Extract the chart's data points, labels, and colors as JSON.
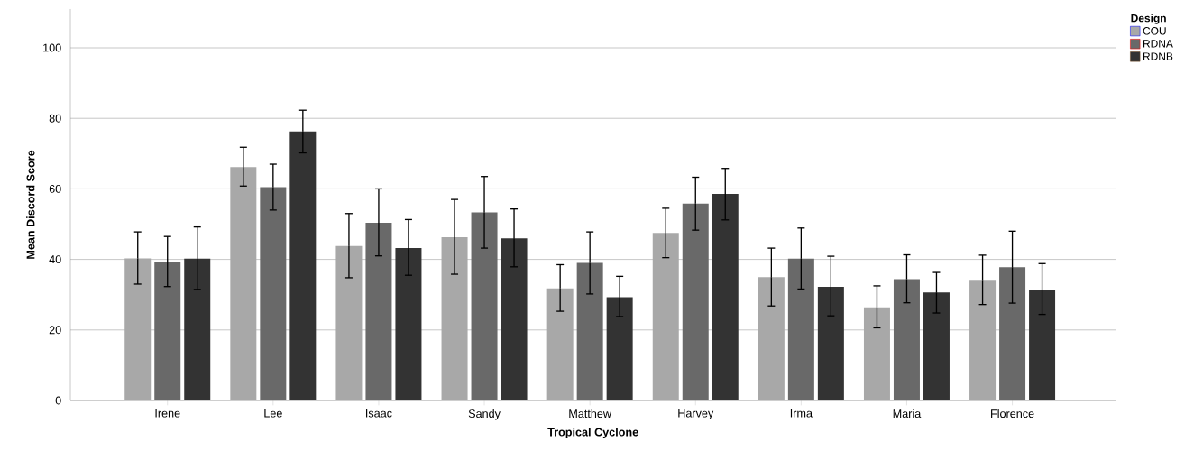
{
  "chart_data": {
    "type": "bar",
    "xlabel": "Tropical Cyclone",
    "ylabel": "Mean Discord Score",
    "legend_title": "Design",
    "categories": [
      "Irene",
      "Lee",
      "Isaac",
      "Sandy",
      "Matthew",
      "Harvey",
      "Irma",
      "Maria",
      "Florence"
    ],
    "series": [
      {
        "name": "COU",
        "color": "#a8a8a8",
        "values": [
          40.3,
          66.2,
          43.8,
          46.3,
          31.8,
          47.5,
          35.0,
          26.4,
          34.2
        ],
        "errors": [
          [
            33.0,
            47.8
          ],
          [
            60.8,
            71.8
          ],
          [
            34.8,
            53.0
          ],
          [
            35.8,
            57.0
          ],
          [
            25.3,
            38.5
          ],
          [
            40.5,
            54.5
          ],
          [
            26.8,
            43.2
          ],
          [
            20.6,
            32.5
          ],
          [
            27.2,
            41.2
          ]
        ]
      },
      {
        "name": "RDNA",
        "color": "#696969",
        "values": [
          39.4,
          60.5,
          50.4,
          53.3,
          39.0,
          55.8,
          40.2,
          34.4,
          37.8
        ],
        "errors": [
          [
            32.3,
            46.5
          ],
          [
            54.0,
            67.0
          ],
          [
            41.0,
            60.0
          ],
          [
            43.2,
            63.5
          ],
          [
            30.2,
            47.8
          ],
          [
            48.3,
            63.3
          ],
          [
            31.6,
            48.9
          ],
          [
            27.7,
            41.3
          ],
          [
            27.6,
            48.0
          ]
        ]
      },
      {
        "name": "RDNB",
        "color": "#333333",
        "values": [
          40.2,
          76.3,
          43.2,
          46.0,
          29.3,
          58.6,
          32.2,
          30.6,
          31.4
        ],
        "errors": [
          [
            31.5,
            49.2
          ],
          [
            70.2,
            82.3
          ],
          [
            35.5,
            51.3
          ],
          [
            37.9,
            54.3
          ],
          [
            23.8,
            35.2
          ],
          [
            51.2,
            65.8
          ],
          [
            24.0,
            40.9
          ],
          [
            24.8,
            36.3
          ],
          [
            24.4,
            38.8
          ]
        ]
      }
    ],
    "ylim": [
      0,
      111
    ],
    "yticks": [
      0,
      20,
      40,
      60,
      80,
      100
    ],
    "grid": "y",
    "legend": "top right"
  }
}
